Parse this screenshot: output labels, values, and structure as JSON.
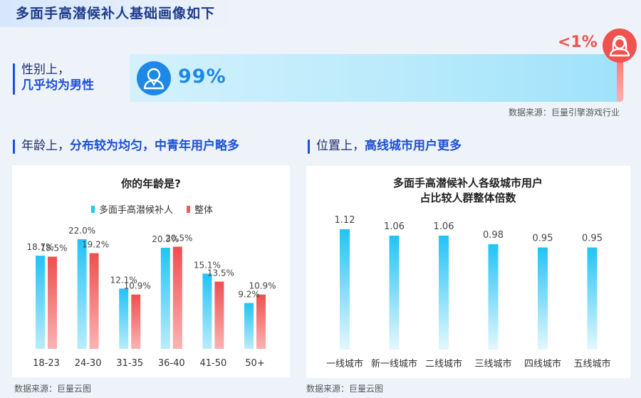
{
  "header": {
    "title": "多面手高潜候补人基础画像如下"
  },
  "gender": {
    "label_line1": "性别上，",
    "label_line2": "几乎均为男性",
    "male_pct": "99%",
    "female_pct": "<1%",
    "male_icon": "male-avatar-icon",
    "female_icon": "female-avatar-icon",
    "source": "数据来源：巨量引擎游戏行业"
  },
  "age_section": {
    "label_prefix": "年龄上，",
    "label_highlight": "分布较为均匀，中青年用户略多",
    "source": "数据来源：巨量云图"
  },
  "city_section": {
    "label_prefix": "位置上，",
    "label_highlight": "高线城市用户更多",
    "source": "数据来源：巨量云图"
  },
  "colors": {
    "blue_series": "#29c5f6",
    "red_series": "#f05a5a",
    "accent": "#1d4fd6"
  },
  "chart_data": [
    {
      "type": "bar",
      "title": "你的年龄是?",
      "categories": [
        "18-23",
        "24-30",
        "31-35",
        "36-40",
        "41-50",
        "50+"
      ],
      "series": [
        {
          "name": "多面手高潜候补人",
          "values": [
            18.7,
            22.0,
            12.1,
            20.3,
            15.1,
            9.2
          ],
          "labels": [
            "18.7%",
            "22.0%",
            "12.1%",
            "20.3%",
            "15.1%",
            "9.2%"
          ]
        },
        {
          "name": "整体",
          "values": [
            18.5,
            19.2,
            10.9,
            20.5,
            13.5,
            10.9
          ],
          "labels": [
            "18.5%",
            "19.2%",
            "10.9%",
            "20.5%",
            "13.5%",
            "10.9%"
          ]
        }
      ],
      "ylim": [
        0,
        25
      ],
      "legend": "top-center",
      "grid": false
    },
    {
      "type": "bar",
      "title_lines": [
        "多面手高潜候补人各级城市用户",
        "占比较人群整体倍数"
      ],
      "categories": [
        "一线城市",
        "新一线城市",
        "二线城市",
        "三线城市",
        "四线城市",
        "五线城市"
      ],
      "values": [
        1.12,
        1.06,
        1.06,
        0.98,
        0.95,
        0.95
      ],
      "labels": [
        "1.12",
        "1.06",
        "1.06",
        "0.98",
        "0.95",
        "0.95"
      ],
      "ylim": [
        0,
        1.2
      ],
      "grid": false
    }
  ]
}
